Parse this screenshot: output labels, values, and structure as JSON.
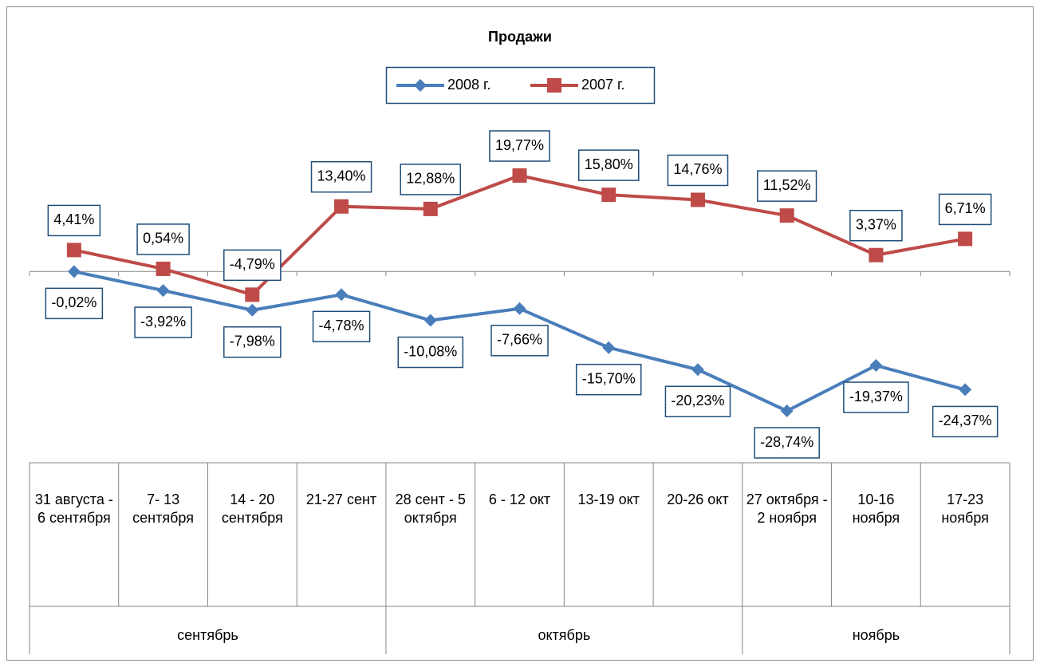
{
  "chart_data": {
    "type": "line",
    "title": "Продажи",
    "legend": "top",
    "categories": [
      "31 августа - 6 сентября",
      "7- 13 сентября",
      "14 - 20 сентября",
      "21-27 сент",
      "28 сент - 5 октября",
      "6 - 12 окт",
      "13-19 окт",
      "20-26 окт",
      "27 октября - 2 ноября",
      "10-16 ноября",
      "17-23 ноября"
    ],
    "groups": [
      {
        "label": "сентябрь",
        "count": 4
      },
      {
        "label": "октябрь",
        "count": 4
      },
      {
        "label": "ноябрь",
        "count": 3
      }
    ],
    "series": [
      {
        "name": "2008 г.",
        "color": "#4a7ebb",
        "marker": "diamond",
        "values": [
          -0.02,
          -3.92,
          -7.98,
          -4.78,
          -10.08,
          -7.66,
          -15.7,
          -20.23,
          -28.74,
          -19.37,
          -24.37
        ],
        "value_labels": [
          "-0,02%",
          "-3,92%",
          "-7,98%",
          "-4,78%",
          "-10,08%",
          "-7,66%",
          "-15,70%",
          "-20,23%",
          "-28,74%",
          "-19,37%",
          "-24,37%"
        ]
      },
      {
        "name": "2007 г.",
        "color": "#be4b48",
        "marker": "square",
        "values": [
          4.41,
          0.54,
          -4.79,
          13.4,
          12.88,
          19.77,
          15.8,
          14.76,
          11.52,
          3.37,
          6.71
        ],
        "value_labels": [
          "4,41%",
          "0,54%",
          "-4,79%",
          "13,40%",
          "12,88%",
          "19,77%",
          "15,80%",
          "14,76%",
          "11,52%",
          "3,37%",
          "6,71%"
        ]
      }
    ]
  }
}
